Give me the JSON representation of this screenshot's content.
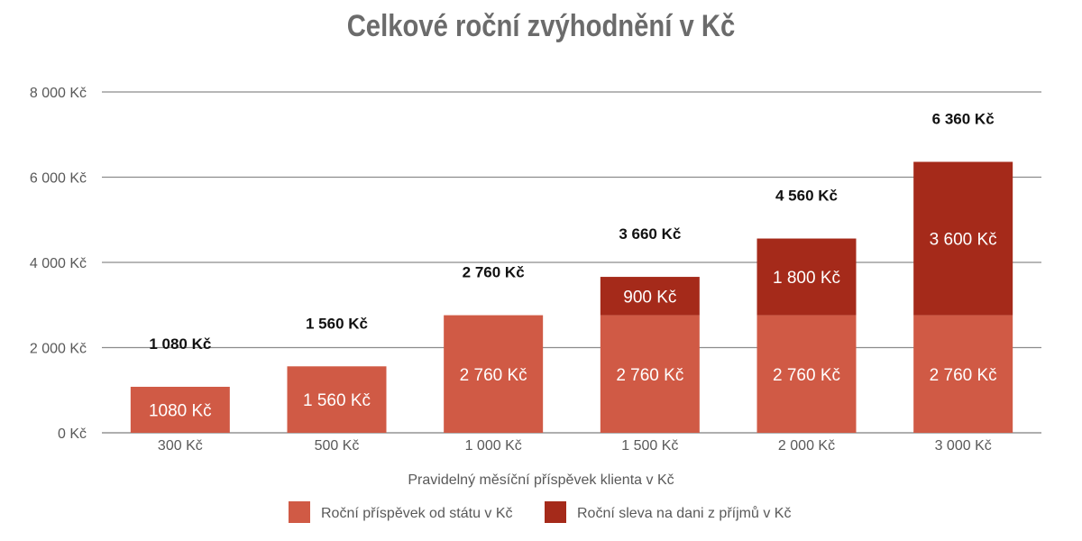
{
  "chart_data": {
    "type": "bar",
    "stacked": true,
    "title": "Celkové roční zvýhodnění v Kč",
    "xlabel": "Pravidelný měsíční příspěvek klienta v Kč",
    "ylabel": "",
    "ylim": [
      0,
      8000
    ],
    "yticks": [
      0,
      2000,
      4000,
      6000,
      8000
    ],
    "ytick_labels": [
      "0 Kč",
      "2 000 Kč",
      "4 000 Kč",
      "6 000 Kč",
      "8 000 Kč"
    ],
    "categories": [
      "300 Kč",
      "500 Kč",
      "1 000 Kč",
      "1 500 Kč",
      "2 000 Kč",
      "3 000 Kč"
    ],
    "series": [
      {
        "name": "Roční příspěvek od státu v Kč",
        "color": "#d05a45",
        "values": [
          1080,
          1560,
          2760,
          2760,
          2760,
          2760
        ],
        "labels": [
          "1080 Kč",
          "1 560 Kč",
          "2 760 Kč",
          "2 760 Kč",
          "2 760 Kč",
          "2 760 Kč"
        ]
      },
      {
        "name": "Roční sleva na dani z příjmů v Kč",
        "color": "#a52a1a",
        "values": [
          0,
          0,
          0,
          900,
          1800,
          3600
        ],
        "labels": [
          "",
          "",
          "",
          "900 Kč",
          "1 800 Kč",
          "3 600 Kč"
        ]
      }
    ],
    "totals": [
      1080,
      1560,
      2760,
      3660,
      4560,
      6360
    ],
    "total_labels": [
      "1 080 Kč",
      "1 560 Kč",
      "2 760 Kč",
      "3 660 Kč",
      "4 560 Kč",
      "6 360 Kč"
    ],
    "grid": true,
    "legend_position": "bottom"
  }
}
